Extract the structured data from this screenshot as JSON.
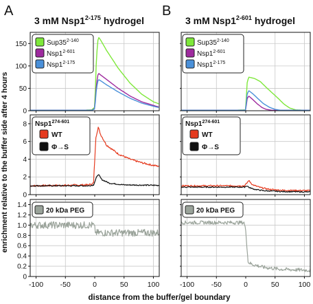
{
  "figure": {
    "panel_letters": [
      "A",
      "B"
    ],
    "titles": [
      {
        "pre": "3 mM Nsp1",
        "sup": "2-175",
        "post": " hydrogel"
      },
      {
        "pre": "3 mM Nsp1",
        "sup": "2-601",
        "post": " hydrogel"
      }
    ],
    "ylabel": "enrichment relative to the buffer side after 4 hours",
    "xlabel": "distance from the buffer/gel boundary",
    "x_ticks": [
      "-100",
      "-50",
      "0",
      "50",
      "100"
    ],
    "x_tick_values": [
      -100,
      -50,
      0,
      50,
      100
    ],
    "legends": {
      "top": [
        {
          "pre": "Sup35",
          "sup": "2-140",
          "color": "#7ee83a"
        },
        {
          "pre": "Nsp1",
          "sup": "2-601",
          "color": "#9e2a9e"
        },
        {
          "pre": "Nsp1",
          "sup": "2-175",
          "color": "#4a90d9"
        }
      ],
      "middle_title": {
        "pre": "Nsp1",
        "sup": "274-601"
      },
      "middle": [
        {
          "label": "WT",
          "color": "#e53a1e"
        },
        {
          "label": "Φ→S",
          "color": "#111111"
        }
      ],
      "bottom": [
        {
          "label": "20 kDa PEG",
          "color": "#9aa39a"
        }
      ]
    }
  },
  "chart_data": [
    {
      "type": "line",
      "panel": "A-top",
      "xlim": [
        -110,
        110
      ],
      "ylim": [
        0,
        175
      ],
      "y_ticks": [
        "0",
        "50",
        "100",
        "150"
      ],
      "y_tick_values": [
        0,
        50,
        100,
        150
      ],
      "series": [
        {
          "name": "Sup35 2-140",
          "color": "#7ee83a",
          "x": [
            -110,
            -20,
            -5,
            0,
            3,
            6,
            10,
            20,
            40,
            60,
            80,
            100,
            110
          ],
          "y": [
            1,
            1,
            2,
            8,
            120,
            165,
            158,
            135,
            95,
            62,
            37,
            20,
            15
          ]
        },
        {
          "name": "Nsp1 2-601",
          "color": "#9e2a9e",
          "x": [
            -110,
            -20,
            -5,
            0,
            3,
            6,
            10,
            20,
            40,
            60,
            80,
            100,
            110
          ],
          "y": [
            1,
            1,
            1,
            5,
            60,
            84,
            80,
            70,
            50,
            33,
            20,
            12,
            8
          ]
        },
        {
          "name": "Nsp1 2-175",
          "color": "#4a90d9",
          "x": [
            -110,
            -20,
            -5,
            0,
            3,
            6,
            10,
            20,
            40,
            60,
            80,
            100,
            110
          ],
          "y": [
            1,
            1,
            1,
            4,
            50,
            70,
            67,
            58,
            42,
            28,
            17,
            10,
            7
          ]
        }
      ]
    },
    {
      "type": "line",
      "panel": "B-top",
      "xlim": [
        -110,
        110
      ],
      "ylim": [
        0,
        175
      ],
      "y_ticks": [
        "0",
        "50",
        "100",
        "150"
      ],
      "y_tick_values": [
        0,
        50,
        100,
        150
      ],
      "series": [
        {
          "name": "Sup35 2-140",
          "color": "#7ee83a",
          "x": [
            -110,
            -20,
            0,
            2,
            5,
            15,
            25,
            35,
            45,
            55,
            65,
            75,
            85,
            100,
            110
          ],
          "y": [
            1,
            1,
            2,
            60,
            75,
            72,
            65,
            52,
            40,
            28,
            15,
            6,
            2,
            1,
            1
          ]
        },
        {
          "name": "Nsp1 2-601",
          "color": "#9e2a9e",
          "x": [
            -110,
            -20,
            0,
            2,
            5,
            12,
            20,
            28,
            35,
            45,
            110
          ],
          "y": [
            1,
            1,
            1,
            25,
            33,
            25,
            15,
            7,
            3,
            1,
            1
          ]
        },
        {
          "name": "Nsp1 2-175",
          "color": "#4a90d9",
          "x": [
            -110,
            -20,
            0,
            2,
            5,
            12,
            20,
            30,
            40,
            50,
            60,
            110
          ],
          "y": [
            1,
            1,
            1,
            35,
            45,
            38,
            28,
            16,
            8,
            3,
            1,
            1
          ]
        }
      ]
    },
    {
      "type": "line",
      "panel": "A-middle",
      "xlim": [
        -110,
        110
      ],
      "ylim": [
        0,
        9
      ],
      "y_ticks": [
        "0",
        "2",
        "4",
        "6",
        "8"
      ],
      "y_tick_values": [
        0,
        2,
        4,
        6,
        8
      ],
      "series": [
        {
          "name": "WT",
          "color": "#e53a1e",
          "noise": 0.1,
          "x": [
            -110,
            -50,
            -10,
            -2,
            2,
            6,
            10,
            20,
            40,
            60,
            80,
            100,
            110
          ],
          "y": [
            1.0,
            1.05,
            1.1,
            1.3,
            6.5,
            7.6,
            6.8,
            5.6,
            4.6,
            4.0,
            3.6,
            3.3,
            3.2
          ]
        },
        {
          "name": "Φ→S",
          "color": "#111111",
          "noise": 0.07,
          "x": [
            -110,
            -10,
            -2,
            2,
            6,
            12,
            25,
            50,
            110
          ],
          "y": [
            1.0,
            1.0,
            1.1,
            1.8,
            2.3,
            1.7,
            1.3,
            1.1,
            1.05
          ]
        }
      ]
    },
    {
      "type": "line",
      "panel": "B-middle",
      "xlim": [
        -110,
        110
      ],
      "ylim": [
        0,
        9
      ],
      "y_ticks": [
        "0",
        "2",
        "4",
        "6",
        "8"
      ],
      "y_tick_values": [
        0,
        2,
        4,
        6,
        8
      ],
      "series": [
        {
          "name": "WT",
          "color": "#e53a1e",
          "noise": 0.08,
          "x": [
            -110,
            -10,
            -2,
            2,
            5,
            12,
            25,
            40,
            60,
            110
          ],
          "y": [
            1.0,
            1.0,
            1.0,
            1.3,
            1.6,
            1.1,
            0.8,
            0.6,
            0.5,
            0.45
          ]
        },
        {
          "name": "Φ→S",
          "color": "#111111",
          "noise": 0.06,
          "x": [
            -110,
            -10,
            -2,
            2,
            6,
            15,
            30,
            60,
            110
          ],
          "y": [
            0.85,
            0.85,
            0.85,
            1.0,
            0.8,
            0.6,
            0.45,
            0.35,
            0.3
          ]
        }
      ]
    },
    {
      "type": "line",
      "panel": "A-bottom",
      "xlim": [
        -110,
        110
      ],
      "ylim": [
        0,
        1.5
      ],
      "y_ticks": [
        "0",
        "0.2",
        "0.4",
        "0.6",
        "0.8",
        "1.0",
        "1.2",
        "1.4"
      ],
      "y_tick_values": [
        0,
        0.2,
        0.4,
        0.6,
        0.8,
        1.0,
        1.2,
        1.4
      ],
      "series": [
        {
          "name": "20 kDa PEG",
          "color": "#9aa39a",
          "noise": 0.07,
          "x": [
            -110,
            -2,
            2,
            110
          ],
          "y": [
            1.0,
            1.0,
            0.85,
            0.85
          ]
        }
      ]
    },
    {
      "type": "line",
      "panel": "B-bottom",
      "xlim": [
        -110,
        110
      ],
      "ylim": [
        0,
        1.5
      ],
      "y_ticks": [
        "0",
        "0.2",
        "0.4",
        "0.6",
        "0.8",
        "1.0",
        "1.2",
        "1.4"
      ],
      "y_tick_values": [
        0,
        0.2,
        0.4,
        0.6,
        0.8,
        1.0,
        1.2,
        1.4
      ],
      "series": [
        {
          "name": "20 kDa PEG",
          "color": "#9aa39a",
          "noise": 0.035,
          "x": [
            -110,
            -3,
            0,
            4,
            10,
            30,
            60,
            110
          ],
          "y": [
            1.05,
            1.05,
            0.9,
            0.28,
            0.24,
            0.18,
            0.14,
            0.12
          ]
        }
      ]
    }
  ]
}
